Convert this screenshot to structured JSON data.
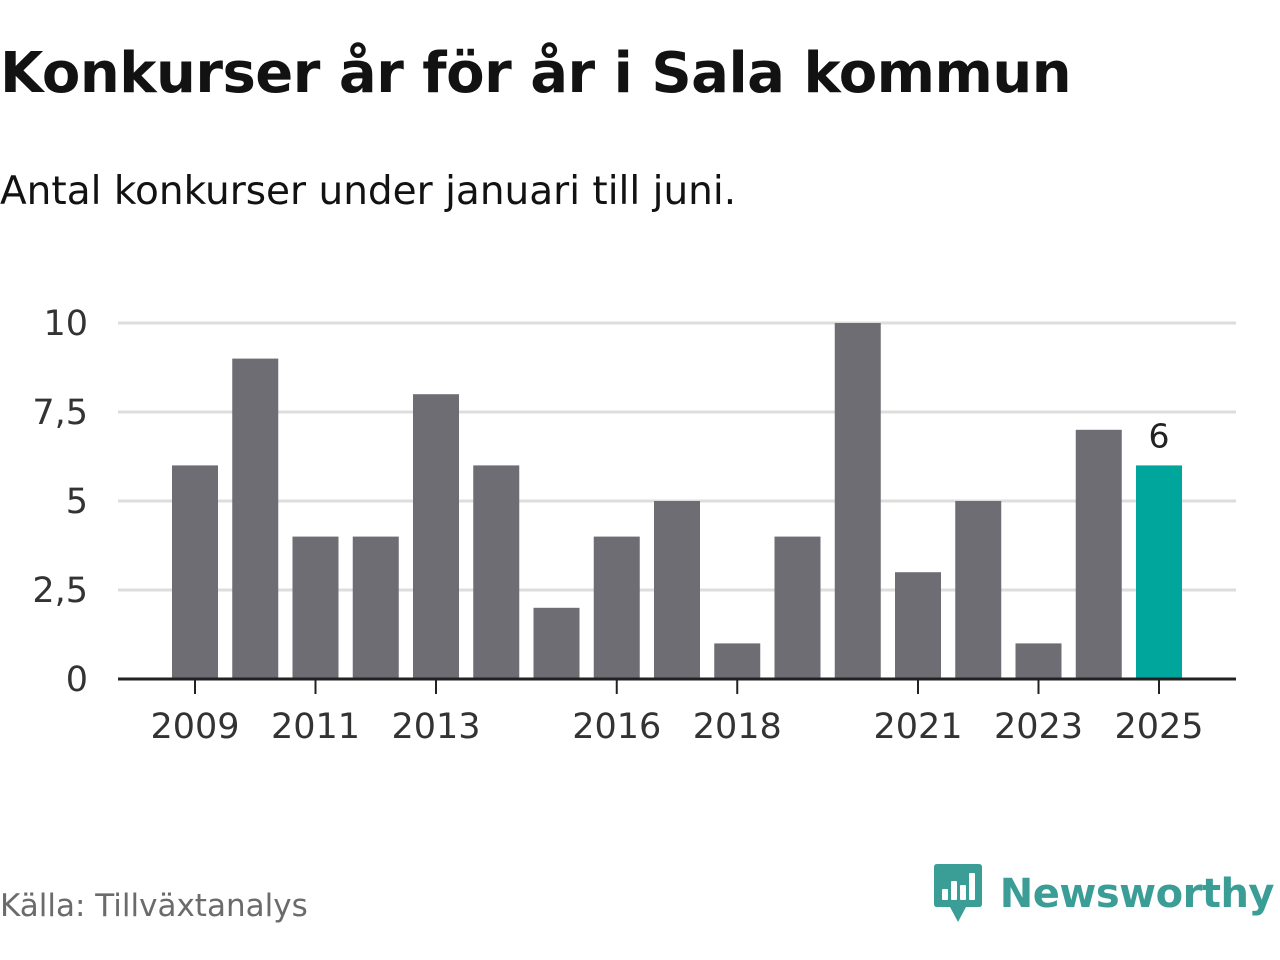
{
  "title": "Konkurser år för år i Sala kommun",
  "subtitle": "Antal konkurser under januari till juni.",
  "source": "Källa: Tillväxtanalys",
  "brand": {
    "name": "Newsworthy",
    "icon": "newsworthy-logo-icon",
    "color": "#3a9e96"
  },
  "colors": {
    "bar": "#6e6d74",
    "highlight": "#00a59c",
    "grid": "#dddddd",
    "axis": "#222222"
  },
  "chart_data": {
    "type": "bar",
    "categories": [
      "2009",
      "2010",
      "2011",
      "2012",
      "2013",
      "2014",
      "2015",
      "2016",
      "2017",
      "2018",
      "2019",
      "2020",
      "2021",
      "2022",
      "2023",
      "2024",
      "2025"
    ],
    "values": [
      6,
      9,
      4,
      4,
      8,
      6,
      2,
      4,
      5,
      1,
      4,
      10,
      3,
      5,
      1,
      7,
      6
    ],
    "x_tick_labels": [
      "2009",
      "2011",
      "2013",
      "2016",
      "2018",
      "2021",
      "2023",
      "2025"
    ],
    "y_ticks": [
      {
        "value": 0,
        "label": "0"
      },
      {
        "value": 2.5,
        "label": "2,5"
      },
      {
        "value": 5,
        "label": "5"
      },
      {
        "value": 7.5,
        "label": "7,5"
      },
      {
        "value": 10,
        "label": "10"
      }
    ],
    "ylim": [
      0,
      10
    ],
    "highlight_category": "2025",
    "data_labels": [
      {
        "category": "2025",
        "text": "6"
      }
    ],
    "grid": true,
    "xlabel": "",
    "ylabel": ""
  }
}
